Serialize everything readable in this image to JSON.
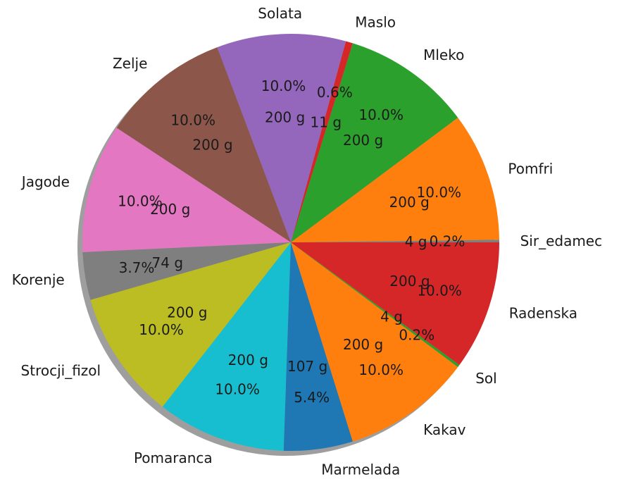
{
  "chart_data": {
    "type": "pie",
    "title": "",
    "start_angle_deg": 0,
    "direction": "counterclockwise",
    "shadow": true,
    "slices": [
      {
        "label": "Sir_edamec",
        "grams": 4,
        "percent": 0.2,
        "value_label": "4 g",
        "pct_label": "0.2%",
        "color": "#7f7f7f"
      },
      {
        "label": "Pomfri",
        "grams": 200,
        "percent": 10.0,
        "value_label": "200 g",
        "pct_label": "10.0%",
        "color": "#ff7f0e"
      },
      {
        "label": "Mleko",
        "grams": 200,
        "percent": 10.0,
        "value_label": "200 g",
        "pct_label": "10.0%",
        "color": "#2ca02c"
      },
      {
        "label": "Maslo",
        "grams": 11,
        "percent": 0.6,
        "value_label": "11 g",
        "pct_label": "0.6%",
        "color": "#d62728"
      },
      {
        "label": "Solata",
        "grams": 200,
        "percent": 10.0,
        "value_label": "200 g",
        "pct_label": "10.0%",
        "color": "#9467bd"
      },
      {
        "label": "Zelje",
        "grams": 200,
        "percent": 10.0,
        "value_label": "200 g",
        "pct_label": "10.0%",
        "color": "#8c564b"
      },
      {
        "label": "Jagode",
        "grams": 200,
        "percent": 10.0,
        "value_label": "200 g",
        "pct_label": "10.0%",
        "color": "#e377c2"
      },
      {
        "label": "Korenje",
        "grams": 74,
        "percent": 3.7,
        "value_label": "74 g",
        "pct_label": "3.7%",
        "color": "#7f7f7f"
      },
      {
        "label": "Strocji_fizol",
        "grams": 200,
        "percent": 10.0,
        "value_label": "200 g",
        "pct_label": "10.0%",
        "color": "#bcbd22"
      },
      {
        "label": "Pomaranca",
        "grams": 200,
        "percent": 10.0,
        "value_label": "200 g",
        "pct_label": "10.0%",
        "color": "#17becf"
      },
      {
        "label": "Marmelada",
        "grams": 107,
        "percent": 5.4,
        "value_label": "107 g",
        "pct_label": "5.4%",
        "color": "#1f77b4"
      },
      {
        "label": "Kakav",
        "grams": 200,
        "percent": 10.0,
        "value_label": "200 g",
        "pct_label": "10.0%",
        "color": "#ff7f0e"
      },
      {
        "label": "Sol",
        "grams": 4,
        "percent": 0.2,
        "value_label": "4 g",
        "pct_label": "0.2%",
        "color": "#2ca02c"
      },
      {
        "label": "Radenska",
        "grams": 200,
        "percent": 10.0,
        "value_label": "200 g",
        "pct_label": "10.0%",
        "color": "#d62728"
      }
    ]
  }
}
